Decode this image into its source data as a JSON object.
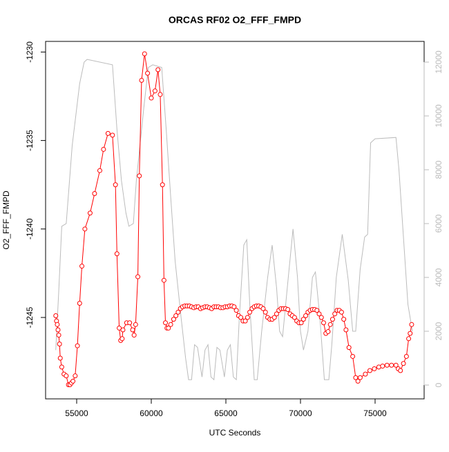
{
  "chart_data": {
    "type": "line",
    "title": "ORCAS RF02 O2_FFF_FMPD",
    "xlabel": "UTC Seconds",
    "ylabel": "O2_FFF_FMPD",
    "xlim": [
      52917,
      78287
    ],
    "xticks": [
      55000,
      60000,
      65000,
      70000,
      75000
    ],
    "ylim": [
      -1249.6,
      -1229.4
    ],
    "yticks": [
      -1245,
      -1240,
      -1235,
      -1230
    ],
    "y2lim": [
      -513,
      12769
    ],
    "y2ticks": [
      0,
      2000,
      4000,
      6000,
      8000,
      10000,
      12000
    ],
    "y2color": "#bbbbbb",
    "series": [
      {
        "color": "#ff0000",
        "markers": true,
        "x": [
          53600,
          53650,
          53700,
          53750,
          53800,
          53850,
          53900,
          54000,
          54150,
          54300,
          54450,
          54550,
          54650,
          54750,
          54900,
          55050,
          55200,
          55350,
          55550,
          55900,
          56200,
          56550,
          56800,
          57100,
          57400,
          57600,
          57700,
          57850,
          57950,
          58050,
          58100,
          58350,
          58550,
          58750,
          58850,
          58950,
          59100,
          59200,
          59350,
          59550,
          59750,
          60000,
          60250,
          60450,
          60600,
          60750,
          60850,
          60950,
          61050,
          61150,
          61300,
          61500,
          61650,
          61800,
          61950,
          62100,
          62250,
          62400,
          62550,
          62700,
          62850,
          63000,
          63150,
          63300,
          63450,
          63600,
          63750,
          63900,
          64050,
          64200,
          64350,
          64500,
          64650,
          64800,
          64950,
          65100,
          65250,
          65400,
          65550,
          65700,
          65850,
          66000,
          66150,
          66300,
          66450,
          66600,
          66750,
          66900,
          67050,
          67200,
          67350,
          67500,
          67650,
          67800,
          67950,
          68100,
          68250,
          68400,
          68550,
          68700,
          68850,
          69000,
          69150,
          69300,
          69450,
          69600,
          69750,
          69900,
          70050,
          70200,
          70350,
          70500,
          70650,
          70800,
          70950,
          71100,
          71250,
          71400,
          71550,
          71700,
          71850,
          72000,
          72150,
          72300,
          72450,
          72600,
          72750,
          72900,
          73050,
          73250,
          73500,
          73700,
          73850,
          74000,
          74350,
          74650,
          74950,
          75250,
          75500,
          75800,
          76100,
          76400,
          76550,
          76700,
          76900,
          77100,
          77250,
          77350,
          77450
        ],
        "values": [
          -1244.9,
          -1245.2,
          -1245.4,
          -1245.7,
          -1246.0,
          -1246.5,
          -1247.3,
          -1247.8,
          -1248.2,
          -1248.3,
          -1248.8,
          -1248.8,
          -1248.7,
          -1248.6,
          -1248.3,
          -1246.6,
          -1244.2,
          -1242.1,
          -1240.0,
          -1239.1,
          -1238.0,
          -1236.7,
          -1235.5,
          -1234.6,
          -1234.7,
          -1237.5,
          -1241.4,
          -1245.6,
          -1246.3,
          -1246.2,
          -1245.7,
          -1245.3,
          -1245.3,
          -1245.7,
          -1246.0,
          -1245.4,
          -1242.7,
          -1237.0,
          -1231.6,
          -1230.1,
          -1231.2,
          -1232.6,
          -1232.2,
          -1231.0,
          -1232.4,
          -1237.5,
          -1242.9,
          -1245.3,
          -1245.6,
          -1245.6,
          -1245.4,
          -1245.1,
          -1244.9,
          -1244.7,
          -1244.5,
          -1244.4,
          -1244.35,
          -1244.35,
          -1244.35,
          -1244.4,
          -1244.45,
          -1244.4,
          -1244.4,
          -1244.5,
          -1244.45,
          -1244.4,
          -1244.4,
          -1244.45,
          -1244.5,
          -1244.4,
          -1244.4,
          -1244.4,
          -1244.45,
          -1244.45,
          -1244.4,
          -1244.4,
          -1244.35,
          -1244.35,
          -1244.4,
          -1244.6,
          -1244.9,
          -1245.0,
          -1245.2,
          -1245.2,
          -1245.0,
          -1244.7,
          -1244.5,
          -1244.4,
          -1244.35,
          -1244.35,
          -1244.4,
          -1244.5,
          -1244.7,
          -1245.0,
          -1245.1,
          -1245.1,
          -1245.0,
          -1244.8,
          -1244.6,
          -1244.5,
          -1244.5,
          -1244.5,
          -1244.55,
          -1244.8,
          -1244.9,
          -1245.0,
          -1245.2,
          -1245.3,
          -1245.3,
          -1245.1,
          -1244.9,
          -1244.7,
          -1244.6,
          -1244.55,
          -1244.55,
          -1244.6,
          -1244.8,
          -1245.0,
          -1245.3,
          -1245.9,
          -1245.8,
          -1245.4,
          -1245.1,
          -1244.8,
          -1244.6,
          -1244.6,
          -1244.7,
          -1245.1,
          -1245.7,
          -1246.7,
          -1247.2,
          -1248.4,
          -1248.6,
          -1248.4,
          -1248.2,
          -1248.0,
          -1247.9,
          -1247.8,
          -1247.75,
          -1247.7,
          -1247.7,
          -1247.7,
          -1247.9,
          -1248.0,
          -1247.6,
          -1247.2,
          -1246.2,
          -1245.9,
          -1245.4
        ]
      },
      {
        "color": "#bbbbbb",
        "axis": "y2",
        "markers": false,
        "x": [
          53600,
          53800,
          54000,
          54300,
          54700,
          55200,
          55500,
          55700,
          57400,
          57700,
          58000,
          58300,
          58500,
          58800,
          59000,
          59500,
          59800,
          60100,
          60700,
          61000,
          61300,
          61600,
          62000,
          62300,
          62500,
          62700,
          62900,
          63100,
          63400,
          63600,
          63800,
          64000,
          64200,
          64400,
          64600,
          64900,
          65100,
          65300,
          65500,
          65700,
          65900,
          66200,
          66400,
          66600,
          66900,
          67100,
          67400,
          67800,
          68100,
          68400,
          68600,
          68800,
          69200,
          69500,
          69800,
          70000,
          70200,
          70500,
          70800,
          71000,
          71300,
          71600,
          71900,
          72100,
          72400,
          72800,
          73200,
          73500,
          73700,
          74000,
          74300,
          74500,
          74700,
          75000,
          76400,
          76600,
          76900,
          77200,
          77500
        ],
        "values": [
          1300,
          3500,
          5900,
          6000,
          8900,
          11200,
          12000,
          12100,
          11900,
          9500,
          7600,
          6400,
          5900,
          6000,
          7600,
          10300,
          11800,
          11900,
          11800,
          9500,
          7000,
          4600,
          2500,
          1000,
          200,
          200,
          1500,
          1400,
          300,
          1300,
          1500,
          300,
          200,
          1400,
          1300,
          300,
          1300,
          1500,
          300,
          200,
          2500,
          5200,
          5400,
          3000,
          200,
          200,
          2000,
          4000,
          5200,
          3600,
          2000,
          1800,
          4100,
          5800,
          4000,
          2000,
          1300,
          2000,
          4000,
          4200,
          2500,
          200,
          200,
          1500,
          4000,
          5600,
          3900,
          2000,
          2000,
          4300,
          5500,
          5600,
          9000,
          9150,
          9200,
          8000,
          5500,
          3000,
          2000
        ]
      }
    ]
  }
}
